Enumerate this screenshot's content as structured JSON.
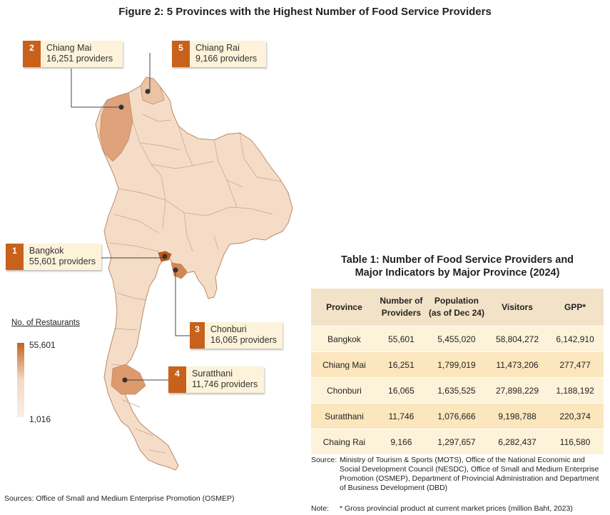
{
  "figure": {
    "title": "Figure 2: 5 Provinces with the Highest Number of Food Service Providers"
  },
  "callouts": [
    {
      "rank": "2",
      "province": "Chiang Mai",
      "providers": "16,251 providers"
    },
    {
      "rank": "5",
      "province": "Chiang Rai",
      "providers": "9,166 providers"
    },
    {
      "rank": "1",
      "province": "Bangkok",
      "providers": "55,601 providers"
    },
    {
      "rank": "3",
      "province": "Chonburi",
      "providers": "16,065 providers"
    },
    {
      "rank": "4",
      "province": "Suratthani",
      "providers": "11,746 providers"
    }
  ],
  "legend": {
    "title": "No. of Restaurants",
    "max": "55,601",
    "min": "1,016",
    "color_max": "#c46420",
    "color_min": "#fbeee4"
  },
  "map_sources": "Sources:  Office of Small and Medium Enterprise Promotion (OSMEP)",
  "table": {
    "title_line1": "Table 1:  Number of Food Service Providers and",
    "title_line2": "Major Indicators by Major Province (2024)",
    "headers": {
      "province": "Province",
      "providers_1": "Number of",
      "providers_2": "Providers",
      "population_1": "Population",
      "population_2": "(as of Dec 24)",
      "visitors": "Visitors",
      "gpp": "GPP*"
    },
    "rows": [
      {
        "province": "Bangkok",
        "providers": "55,601",
        "population": "5,455,020",
        "visitors": "58,804,272",
        "gpp": "6,142,910"
      },
      {
        "province": "Chiang Mai",
        "providers": "16,251",
        "population": "1,799,019",
        "visitors": "11,473,206",
        "gpp": "277,477"
      },
      {
        "province": "Chonburi",
        "providers": "16,065",
        "population": "1,635,525",
        "visitors": "27,898,229",
        "gpp": "1,188,192"
      },
      {
        "province": "Suratthani",
        "providers": "11,746",
        "population": "1,076,666",
        "visitors": "9,198,788",
        "gpp": "220,374"
      },
      {
        "province": "Chaing Rai",
        "providers": "9,166",
        "population": "1,297,657",
        "visitors": "6,282,437",
        "gpp": "116,580"
      }
    ],
    "header_bg": "#f2e2c7",
    "row_bg": "#fdf3da",
    "row_bg_alt": "#fbe6bd"
  },
  "notes": {
    "source_label": "Source:",
    "source_text": "Ministry of Tourism & Sports (MOTS), Office of the National Economic and Social Development Council (NESDC), Office of Small and Medium Enterprise Promotion (OSMEP), Department of Provincial Administration and Department of Business Development (DBD)",
    "note_label": "Note:",
    "note_text": "* Gross provincial product at current market prices (million Baht, 2023)"
  },
  "colors": {
    "accent": "#c8611b",
    "callout_bg": "#fdf3da",
    "province_fill": "#f7dcc6",
    "province_border": "#b88a6a"
  }
}
